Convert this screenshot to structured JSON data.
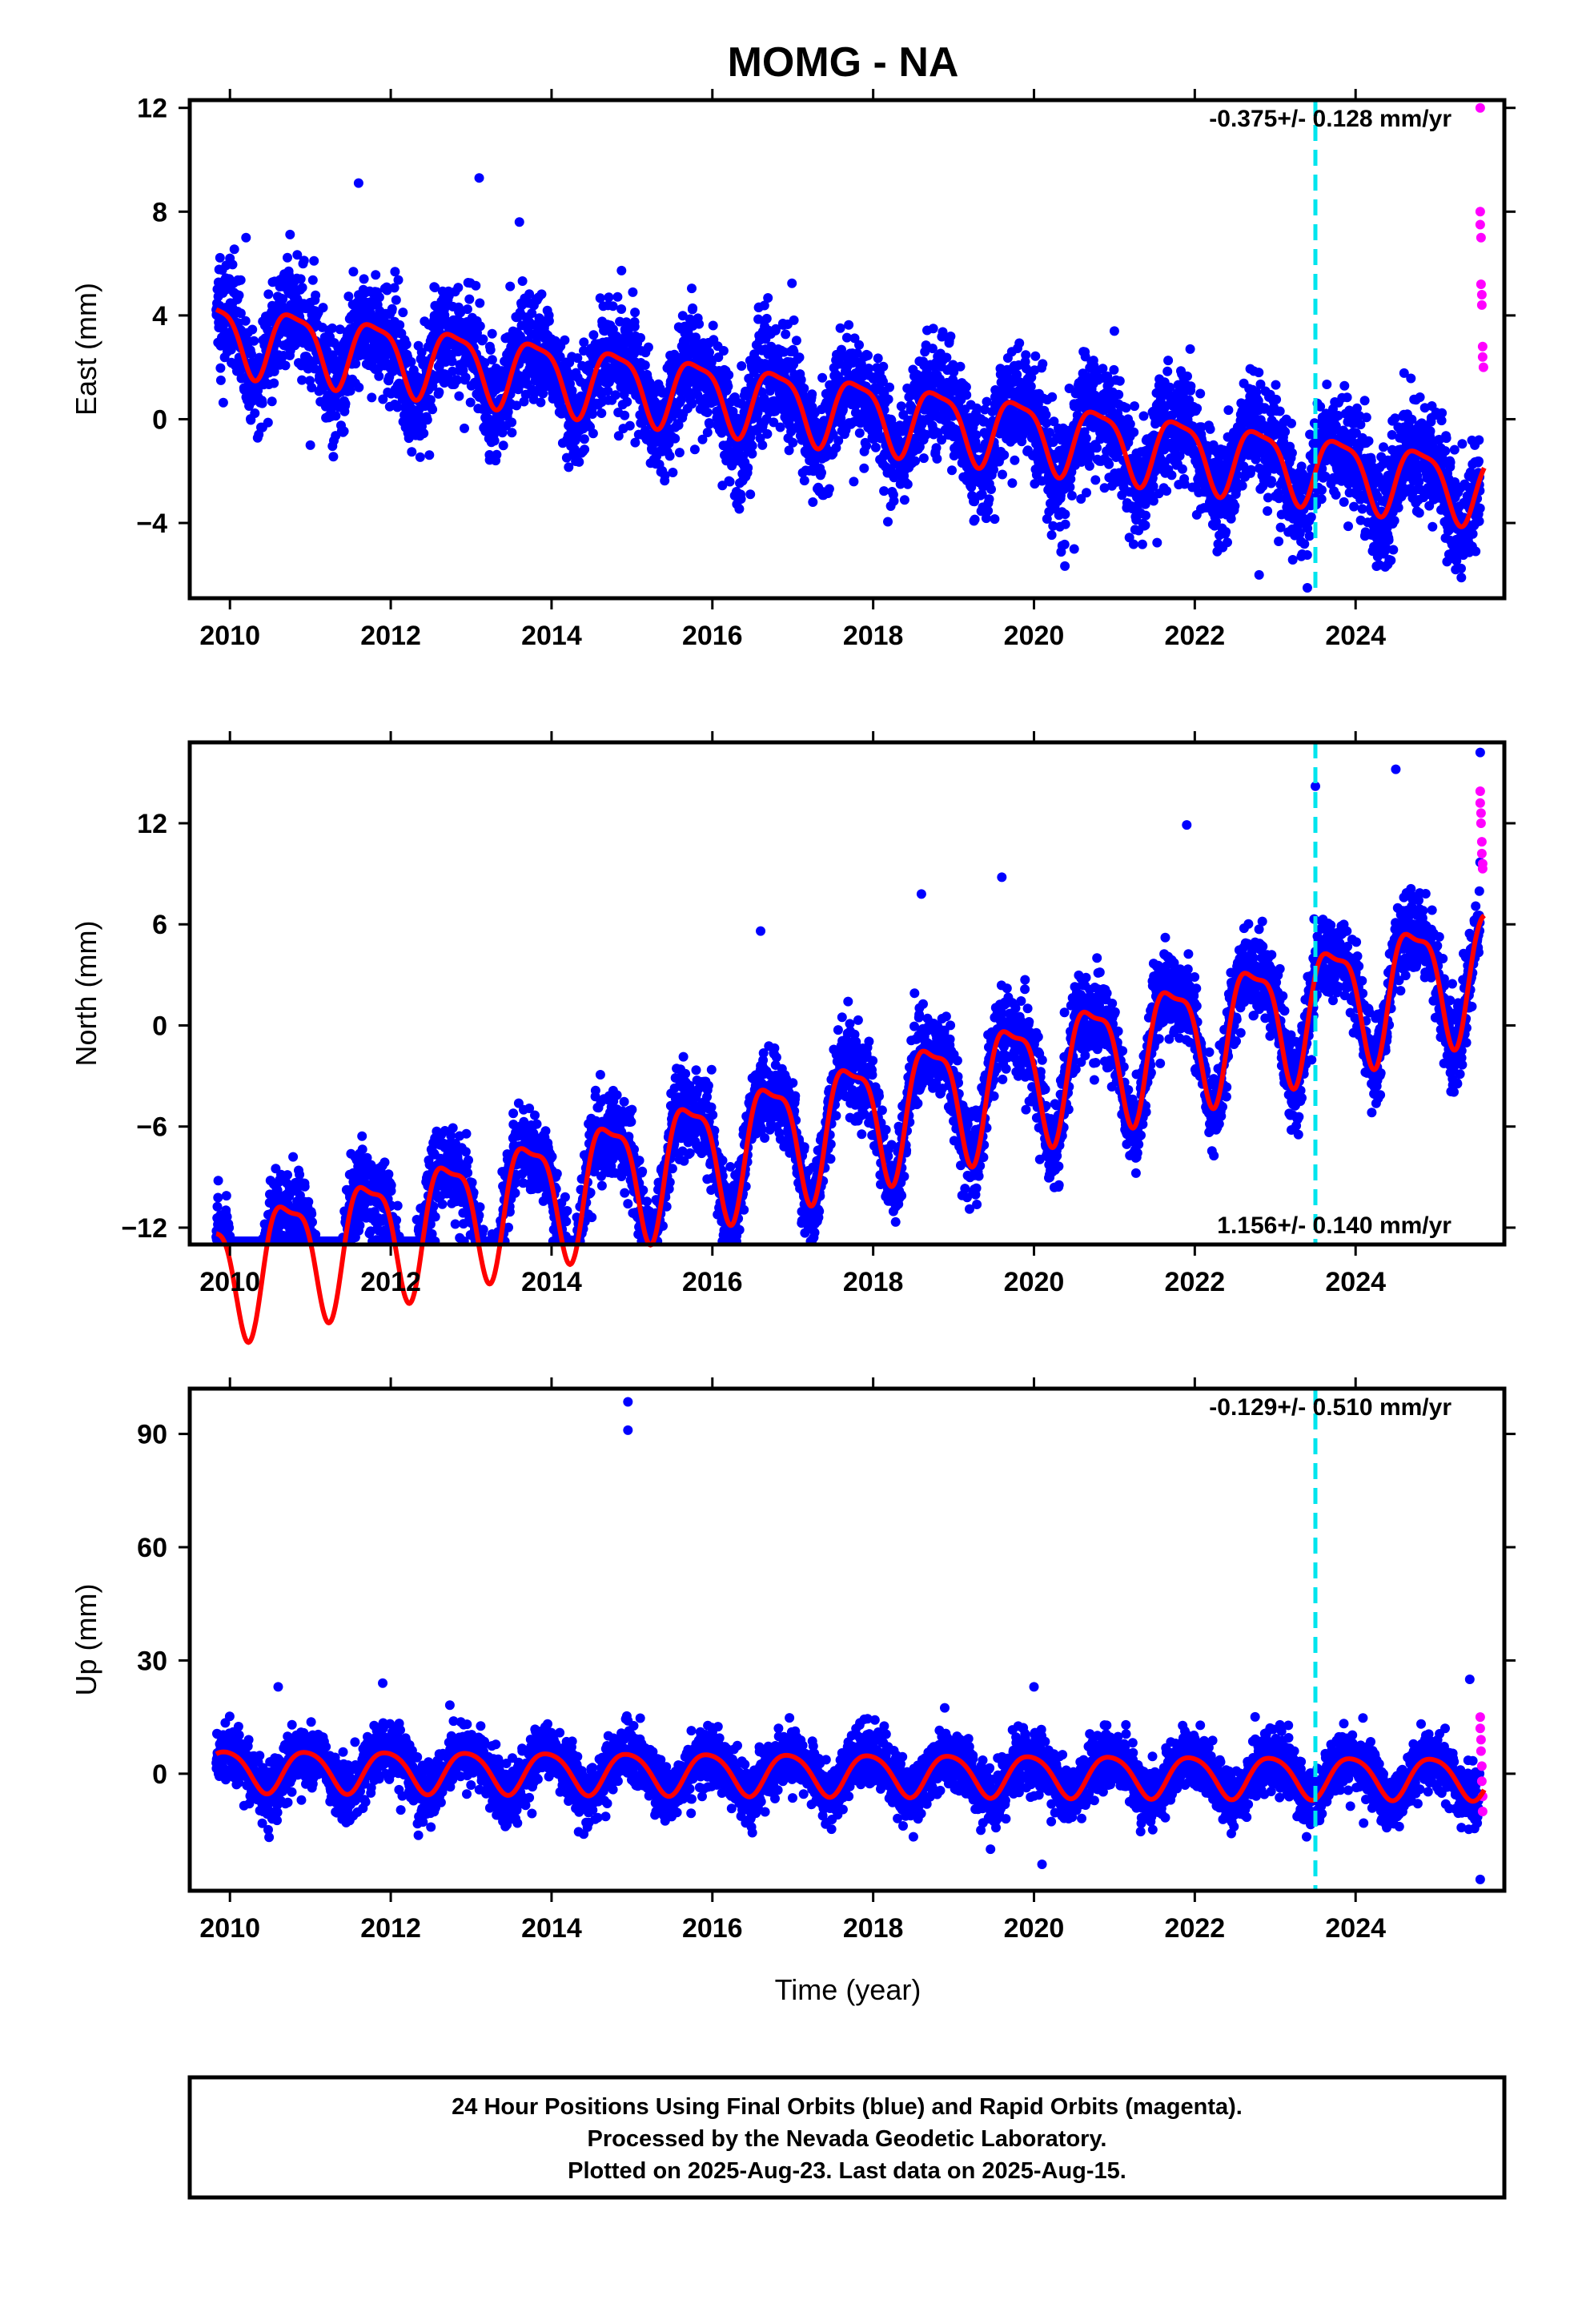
{
  "title": "MOMG - NA",
  "colors": {
    "final_points": "#0000ff",
    "rapid_points": "#ff00ff",
    "fit_curve": "#ff0000",
    "event_line": "#00e5ee",
    "frame": "#000000"
  },
  "chart_data": [
    {
      "type": "scatter",
      "panel": "east",
      "ylabel": "East (mm)",
      "xlabel": "",
      "xlim": [
        2009.5,
        2025.85
      ],
      "ylim": [
        -6.9,
        12.3
      ],
      "xticks": [
        2010,
        2012,
        2014,
        2016,
        2018,
        2020,
        2022,
        2024
      ],
      "yticks": [
        -4,
        0,
        4,
        8,
        12
      ],
      "ytick_labels": [
        "−4",
        "0",
        "4",
        "8",
        "12"
      ],
      "rate_text": "-0.375+/- 0.128 mm/yr",
      "rate_position": "top-right",
      "event_line_x": 2023.5,
      "model": {
        "offset": 3.3,
        "rate": -0.375,
        "annual_amp": 1.3,
        "annual_phase": 0.55,
        "semi_amp": 0.35,
        "start": 2009.83,
        "end": 2025.6
      },
      "final_scatter_sd": 1.05,
      "rapid_points": [
        {
          "x": 2025.55,
          "y": 12.0
        },
        {
          "x": 2025.55,
          "y": 8.0
        },
        {
          "x": 2025.55,
          "y": 7.5
        },
        {
          "x": 2025.56,
          "y": 7.0
        },
        {
          "x": 2025.56,
          "y": 5.2
        },
        {
          "x": 2025.57,
          "y": 4.8
        },
        {
          "x": 2025.57,
          "y": 4.4
        },
        {
          "x": 2025.58,
          "y": 2.8
        },
        {
          "x": 2025.58,
          "y": 2.4
        },
        {
          "x": 2025.59,
          "y": 2.0
        }
      ],
      "notable_points": [
        {
          "x": 2011.6,
          "y": 9.1
        },
        {
          "x": 2013.1,
          "y": 9.3
        },
        {
          "x": 2013.6,
          "y": 7.6
        },
        {
          "x": 2010.2,
          "y": 7.0
        },
        {
          "x": 2021.0,
          "y": 3.4
        },
        {
          "x": 2022.8,
          "y": -6.0
        },
        {
          "x": 2023.4,
          "y": -6.5
        },
        {
          "x": 2020.5,
          "y": -5.0
        },
        {
          "x": 2024.4,
          "y": -5.6
        },
        {
          "x": 2025.45,
          "y": -4.9
        },
        {
          "x": 2011.0,
          "y": -1.0
        }
      ]
    },
    {
      "type": "scatter",
      "panel": "north",
      "ylabel": "North (mm)",
      "xlabel": "",
      "xlim": [
        2009.5,
        2025.85
      ],
      "ylim": [
        -13.0,
        16.8
      ],
      "xticks": [
        2010,
        2012,
        2014,
        2016,
        2018,
        2020,
        2022,
        2024
      ],
      "yticks": [
        -12,
        -6,
        0,
        6,
        12
      ],
      "ytick_labels": [
        "−12",
        "−6",
        "0",
        "6",
        "12"
      ],
      "rate_text": "1.156+/- 0.140 mm/yr",
      "rate_position": "bottom-right",
      "event_line_x": 2023.5,
      "model": {
        "offset": -14.6,
        "rate": 1.156,
        "annual_amp": 3.6,
        "annual_phase": 0.47,
        "semi_amp": 1.1,
        "start": 2009.83,
        "end": 2025.6
      },
      "final_scatter_sd": 1.25,
      "rapid_points": [
        {
          "x": 2025.55,
          "y": 13.9
        },
        {
          "x": 2025.55,
          "y": 13.2
        },
        {
          "x": 2025.56,
          "y": 12.6
        },
        {
          "x": 2025.56,
          "y": 12.0
        },
        {
          "x": 2025.57,
          "y": 10.9
        },
        {
          "x": 2025.57,
          "y": 10.2
        },
        {
          "x": 2025.58,
          "y": 9.6
        },
        {
          "x": 2025.58,
          "y": 9.3
        }
      ],
      "notable_points": [
        {
          "x": 2025.55,
          "y": 16.2
        },
        {
          "x": 2024.5,
          "y": 15.2
        },
        {
          "x": 2023.5,
          "y": 14.2
        },
        {
          "x": 2021.9,
          "y": 11.9
        },
        {
          "x": 2019.6,
          "y": 8.8
        },
        {
          "x": 2018.6,
          "y": 7.8
        },
        {
          "x": 2016.6,
          "y": 5.6
        },
        {
          "x": 2017.0,
          "y": -6.2
        },
        {
          "x": 2019.9,
          "y": -5.0
        },
        {
          "x": 2015.0,
          "y": -5.0
        },
        {
          "x": 2011.9,
          "y": -12.3
        },
        {
          "x": 2010.0,
          "y": -12.5
        }
      ]
    },
    {
      "type": "scatter",
      "panel": "up",
      "ylabel": "Up (mm)",
      "xlabel": "Time (year)",
      "xlim": [
        2009.5,
        2025.85
      ],
      "ylim": [
        -31,
        102
      ],
      "xticks": [
        2010,
        2012,
        2014,
        2016,
        2018,
        2020,
        2022,
        2024
      ],
      "yticks": [
        0,
        30,
        60,
        90
      ],
      "ytick_labels": [
        "0",
        "30",
        "60",
        "90"
      ],
      "rate_text": "-0.129+/- 0.510 mm/yr",
      "rate_position": "top-right",
      "event_line_x": 2023.5,
      "model": {
        "offset": 1.0,
        "rate": -0.129,
        "annual_amp": 5.5,
        "annual_phase": 0.7,
        "semi_amp": 0.8,
        "start": 2009.83,
        "end": 2025.6
      },
      "final_scatter_sd": 3.8,
      "rapid_points": [
        {
          "x": 2025.55,
          "y": 15.0
        },
        {
          "x": 2025.55,
          "y": 12.0
        },
        {
          "x": 2025.56,
          "y": 9.0
        },
        {
          "x": 2025.56,
          "y": 6.0
        },
        {
          "x": 2025.57,
          "y": 2.0
        },
        {
          "x": 2025.57,
          "y": -2.0
        },
        {
          "x": 2025.58,
          "y": -6.0
        },
        {
          "x": 2025.58,
          "y": -10.0
        }
      ],
      "notable_points": [
        {
          "x": 2014.95,
          "y": 98.5
        },
        {
          "x": 2014.95,
          "y": 91.0
        },
        {
          "x": 2025.42,
          "y": 25.0
        },
        {
          "x": 2011.9,
          "y": 24.0
        },
        {
          "x": 2010.6,
          "y": 23.0
        },
        {
          "x": 2020.0,
          "y": 23.0
        },
        {
          "x": 2020.1,
          "y": -24.0
        },
        {
          "x": 2014.4,
          "y": -16.0
        },
        {
          "x": 2025.55,
          "y": -28.0
        }
      ]
    }
  ],
  "caption": {
    "line1": "24 Hour Positions Using Final Orbits (blue) and Rapid Orbits (magenta).",
    "line2": "Processed by the Nevada Geodetic Laboratory.",
    "line3": "Plotted on 2025-Aug-23. Last data on 2025-Aug-15."
  }
}
